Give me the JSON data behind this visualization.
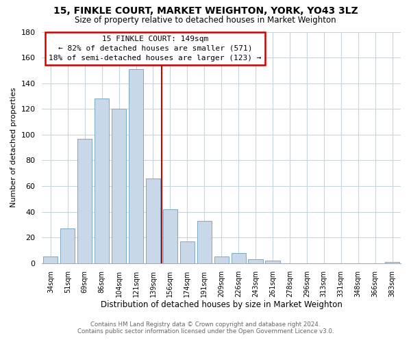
{
  "title": "15, FINKLE COURT, MARKET WEIGHTON, YORK, YO43 3LZ",
  "subtitle": "Size of property relative to detached houses in Market Weighton",
  "xlabel": "Distribution of detached houses by size in Market Weighton",
  "ylabel": "Number of detached properties",
  "bar_labels": [
    "34sqm",
    "51sqm",
    "69sqm",
    "86sqm",
    "104sqm",
    "121sqm",
    "139sqm",
    "156sqm",
    "174sqm",
    "191sqm",
    "209sqm",
    "226sqm",
    "243sqm",
    "261sqm",
    "278sqm",
    "296sqm",
    "313sqm",
    "331sqm",
    "348sqm",
    "366sqm",
    "383sqm"
  ],
  "bar_heights": [
    5,
    27,
    97,
    128,
    120,
    151,
    66,
    42,
    17,
    33,
    5,
    8,
    3,
    2,
    0,
    0,
    0,
    0,
    0,
    0,
    1
  ],
  "bar_color": "#c8d8e8",
  "bar_edgecolor": "#7aaac8",
  "ylim": [
    0,
    180
  ],
  "vline_x_index": 7,
  "vline_color": "#cc0000",
  "annotation_title": "15 FINKLE COURT: 149sqm",
  "annotation_line1": "← 82% of detached houses are smaller (571)",
  "annotation_line2": "18% of semi-detached houses are larger (123) →",
  "annotation_box_facecolor": "#ffffff",
  "annotation_box_edgecolor": "#cc0000",
  "footer1": "Contains HM Land Registry data © Crown copyright and database right 2024.",
  "footer2": "Contains public sector information licensed under the Open Government Licence v3.0.",
  "background_color": "#ffffff",
  "grid_color": "#c8d4dc"
}
